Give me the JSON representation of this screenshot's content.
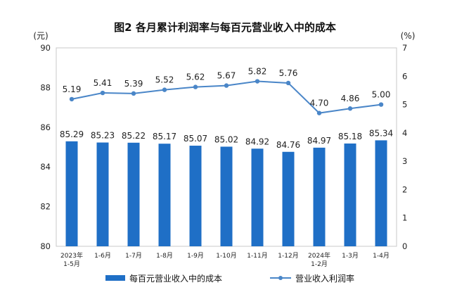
{
  "chart_data": {
    "type": "bar+line",
    "title": "图2  各月累计利润率与每百元营业收入中的成本",
    "left_unit": "(元)",
    "right_unit": "(%)",
    "y_left": {
      "min": 80,
      "max": 90,
      "ticks": [
        "80",
        "82",
        "84",
        "86",
        "88",
        "90"
      ]
    },
    "y_right": {
      "min": 0,
      "max": 7,
      "ticks": [
        "0",
        "1",
        "2",
        "3",
        "4",
        "5",
        "6",
        "7"
      ]
    },
    "categories": [
      [
        "2023年",
        "1-5月"
      ],
      [
        "1-6月"
      ],
      [
        "1-7月"
      ],
      [
        "1-8月"
      ],
      [
        "1-9月"
      ],
      [
        "1-10月"
      ],
      [
        "1-11月"
      ],
      [
        "1-12月"
      ],
      [
        "2024年",
        "1-2月"
      ],
      [
        "1-3月"
      ],
      [
        "1-4月"
      ]
    ],
    "series": [
      {
        "name": "每百元营业收入中的成本",
        "kind": "bar",
        "axis": "left",
        "color": "#1f6fc6",
        "values": [
          85.29,
          85.23,
          85.22,
          85.17,
          85.07,
          85.02,
          84.92,
          84.76,
          84.97,
          85.18,
          85.34
        ],
        "labels": [
          "85.29",
          "85.23",
          "85.22",
          "85.17",
          "85.07",
          "85.02",
          "84.92",
          "84.76",
          "84.97",
          "85.18",
          "85.34"
        ]
      },
      {
        "name": "营业收入利润率",
        "kind": "line",
        "axis": "right",
        "color": "#4a86c8",
        "values": [
          5.19,
          5.41,
          5.39,
          5.52,
          5.62,
          5.67,
          5.82,
          5.76,
          4.7,
          4.86,
          5.0
        ],
        "labels": [
          "5.19",
          "5.41",
          "5.39",
          "5.52",
          "5.62",
          "5.67",
          "5.82",
          "5.76",
          "4.70",
          "4.86",
          "5.00"
        ]
      }
    ],
    "legend": {
      "placement": "bottom",
      "bar_label": "每百元营业收入中的成本",
      "line_label": "营业收入利润率"
    }
  }
}
